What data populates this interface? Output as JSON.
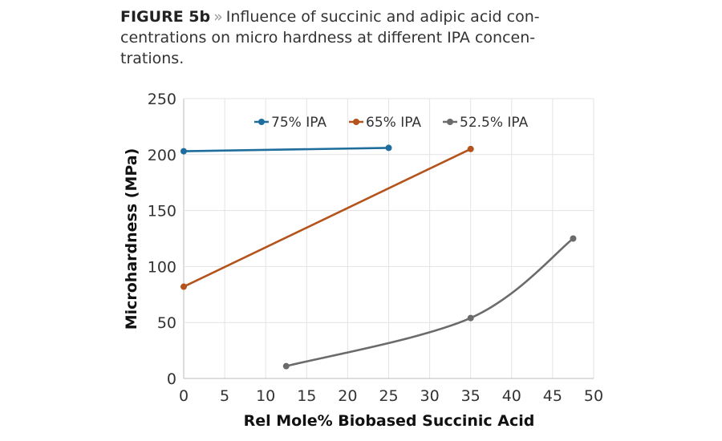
{
  "caption": {
    "figure_label": "FIGURE 5b",
    "separator": "»",
    "text": "Influence of succinic and adipic acid con-centrations on micro hardness at different IPA concen-trations."
  },
  "chart_data": {
    "type": "line",
    "title": "",
    "xlabel": "Rel Mole% Biobased Succinic Acid",
    "ylabel": "Microhardness (MPa)",
    "xlim": [
      0,
      50
    ],
    "ylim": [
      0,
      250
    ],
    "xticks": [
      0,
      5,
      10,
      15,
      20,
      25,
      30,
      35,
      40,
      45,
      50
    ],
    "yticks": [
      0,
      50,
      100,
      150,
      200,
      250
    ],
    "grid": true,
    "legend_position": "top",
    "series": [
      {
        "name": "75% IPA",
        "color": "#1f6d9c",
        "smooth": false,
        "x": [
          0,
          25
        ],
        "y": [
          203,
          206
        ]
      },
      {
        "name": "65% IPA",
        "color": "#b4531b",
        "smooth": false,
        "x": [
          0,
          35
        ],
        "y": [
          82,
          205
        ]
      },
      {
        "name": "52.5% IPA",
        "color": "#6b6b6b",
        "smooth": true,
        "x": [
          12.5,
          35,
          47.5
        ],
        "y": [
          11,
          54,
          125
        ]
      }
    ]
  }
}
